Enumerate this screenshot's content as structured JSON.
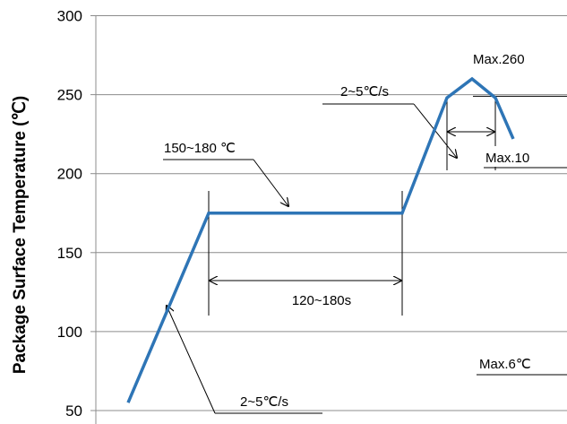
{
  "chart_data": {
    "type": "line",
    "title": "",
    "xlabel": "",
    "ylabel": "Package Surface Temperature (℃)",
    "ylim": [
      40,
      300
    ],
    "yticks": [
      50,
      100,
      150,
      200,
      250,
      300
    ],
    "grid": true,
    "series": [
      {
        "color": "#2e75b6",
        "points": [
          {
            "x": 0,
            "y": 55
          },
          {
            "x": 45,
            "y": 175
          },
          {
            "x": 153,
            "y": 175
          },
          {
            "x": 178,
            "y": 248
          },
          {
            "x": 192,
            "y": 260
          },
          {
            "x": 205,
            "y": 248
          },
          {
            "x": 215,
            "y": 222
          }
        ]
      }
    ],
    "annotations": [
      {
        "id": "ramp_up",
        "text": "2~5℃/s"
      },
      {
        "id": "soak_temp",
        "text": "150~180 ℃"
      },
      {
        "id": "soak_time",
        "text": "120~180s"
      },
      {
        "id": "ramp_peak",
        "text": "2~5℃/s"
      },
      {
        "id": "peak",
        "text": "Max.260"
      },
      {
        "id": "peak_time",
        "text": "Max.10"
      },
      {
        "id": "max6",
        "text": "Max.6℃"
      }
    ]
  }
}
